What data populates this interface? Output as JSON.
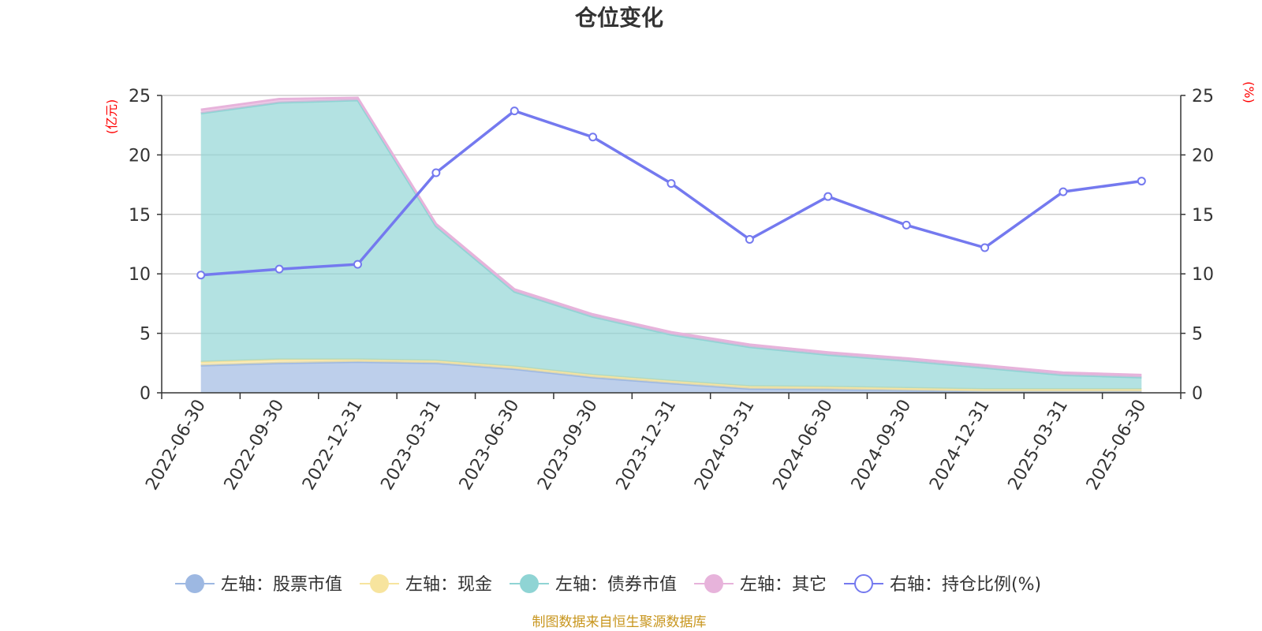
{
  "chart_data": {
    "type": "area",
    "title": "仓位变化",
    "left_unit": "(亿元)",
    "right_unit": "(%)",
    "categories": [
      "2022-06-30",
      "2022-09-30",
      "2022-12-31",
      "2023-03-31",
      "2023-06-30",
      "2023-09-30",
      "2023-12-31",
      "2024-03-31",
      "2024-06-30",
      "2024-09-30",
      "2024-12-31",
      "2025-03-31",
      "2025-06-30"
    ],
    "y_left": {
      "min": 0,
      "max": 25,
      "ticks": [
        0,
        5,
        10,
        15,
        20,
        25
      ]
    },
    "y_right": {
      "min": 0,
      "max": 25,
      "ticks": [
        0,
        5,
        10,
        15,
        20,
        25
      ]
    },
    "grid": true,
    "legend_position": "bottom",
    "stacked_series": [
      {
        "name": "左轴：股票市值",
        "axis": "left",
        "color": "#9db8e2",
        "values": [
          2.3,
          2.5,
          2.6,
          2.5,
          2.0,
          1.3,
          0.8,
          0.35,
          0.3,
          0.2,
          0.1,
          0.1,
          0.1
        ]
      },
      {
        "name": "左轴：现金",
        "axis": "left",
        "color": "#f7e49e",
        "values": [
          0.3,
          0.3,
          0.2,
          0.2,
          0.2,
          0.2,
          0.2,
          0.2,
          0.2,
          0.2,
          0.2,
          0.2,
          0.2
        ]
      },
      {
        "name": "左轴：债券市值",
        "axis": "left",
        "color": "#8fd4d4",
        "values": [
          20.9,
          21.6,
          21.8,
          11.3,
          6.3,
          4.9,
          3.9,
          3.3,
          2.7,
          2.3,
          1.8,
          1.2,
          1.0
        ]
      },
      {
        "name": "左轴：其它",
        "axis": "left",
        "color": "#e7b3db",
        "values": [
          0.3,
          0.3,
          0.2,
          0.2,
          0.2,
          0.2,
          0.2,
          0.2,
          0.2,
          0.2,
          0.2,
          0.2,
          0.2
        ]
      }
    ],
    "line_series": [
      {
        "name": "右轴：持仓比例(%)",
        "axis": "right",
        "color": "#7479ef",
        "values": [
          9.9,
          10.4,
          10.8,
          18.5,
          23.7,
          21.5,
          17.6,
          12.9,
          16.5,
          14.1,
          12.2,
          16.9,
          17.8
        ]
      }
    ]
  },
  "source": "制图数据来自恒生聚源数据库"
}
